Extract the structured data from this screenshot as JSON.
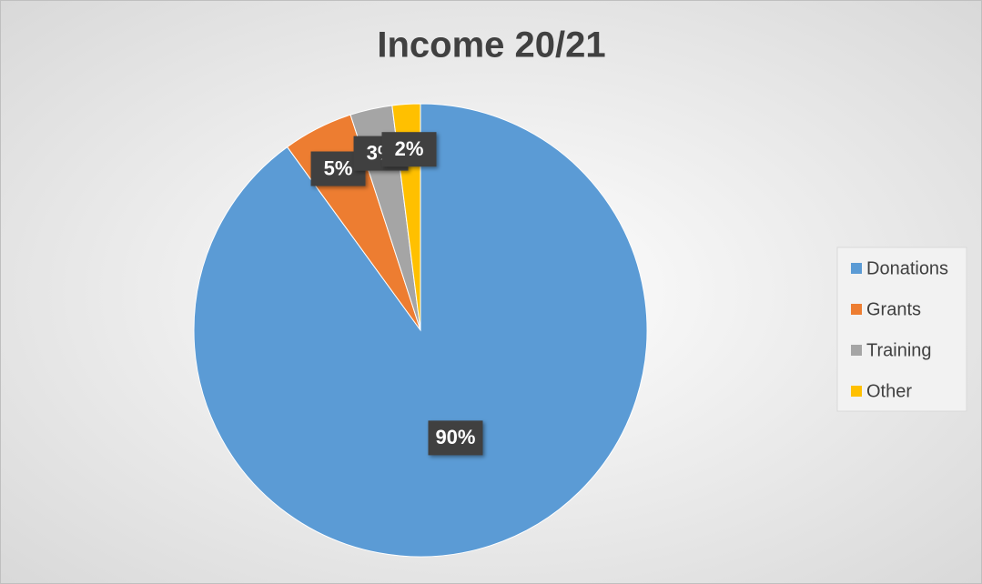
{
  "chart_data": {
    "type": "pie",
    "title": "Income 20/21",
    "categories": [
      "Donations",
      "Grants",
      "Training",
      "Other"
    ],
    "values": [
      90,
      5,
      3,
      2
    ],
    "value_labels": [
      "90%",
      "5%",
      "3%",
      "2%"
    ],
    "colors": [
      "#5b9bd5",
      "#ed7d31",
      "#a5a5a5",
      "#ffc000"
    ],
    "legend": "right"
  }
}
